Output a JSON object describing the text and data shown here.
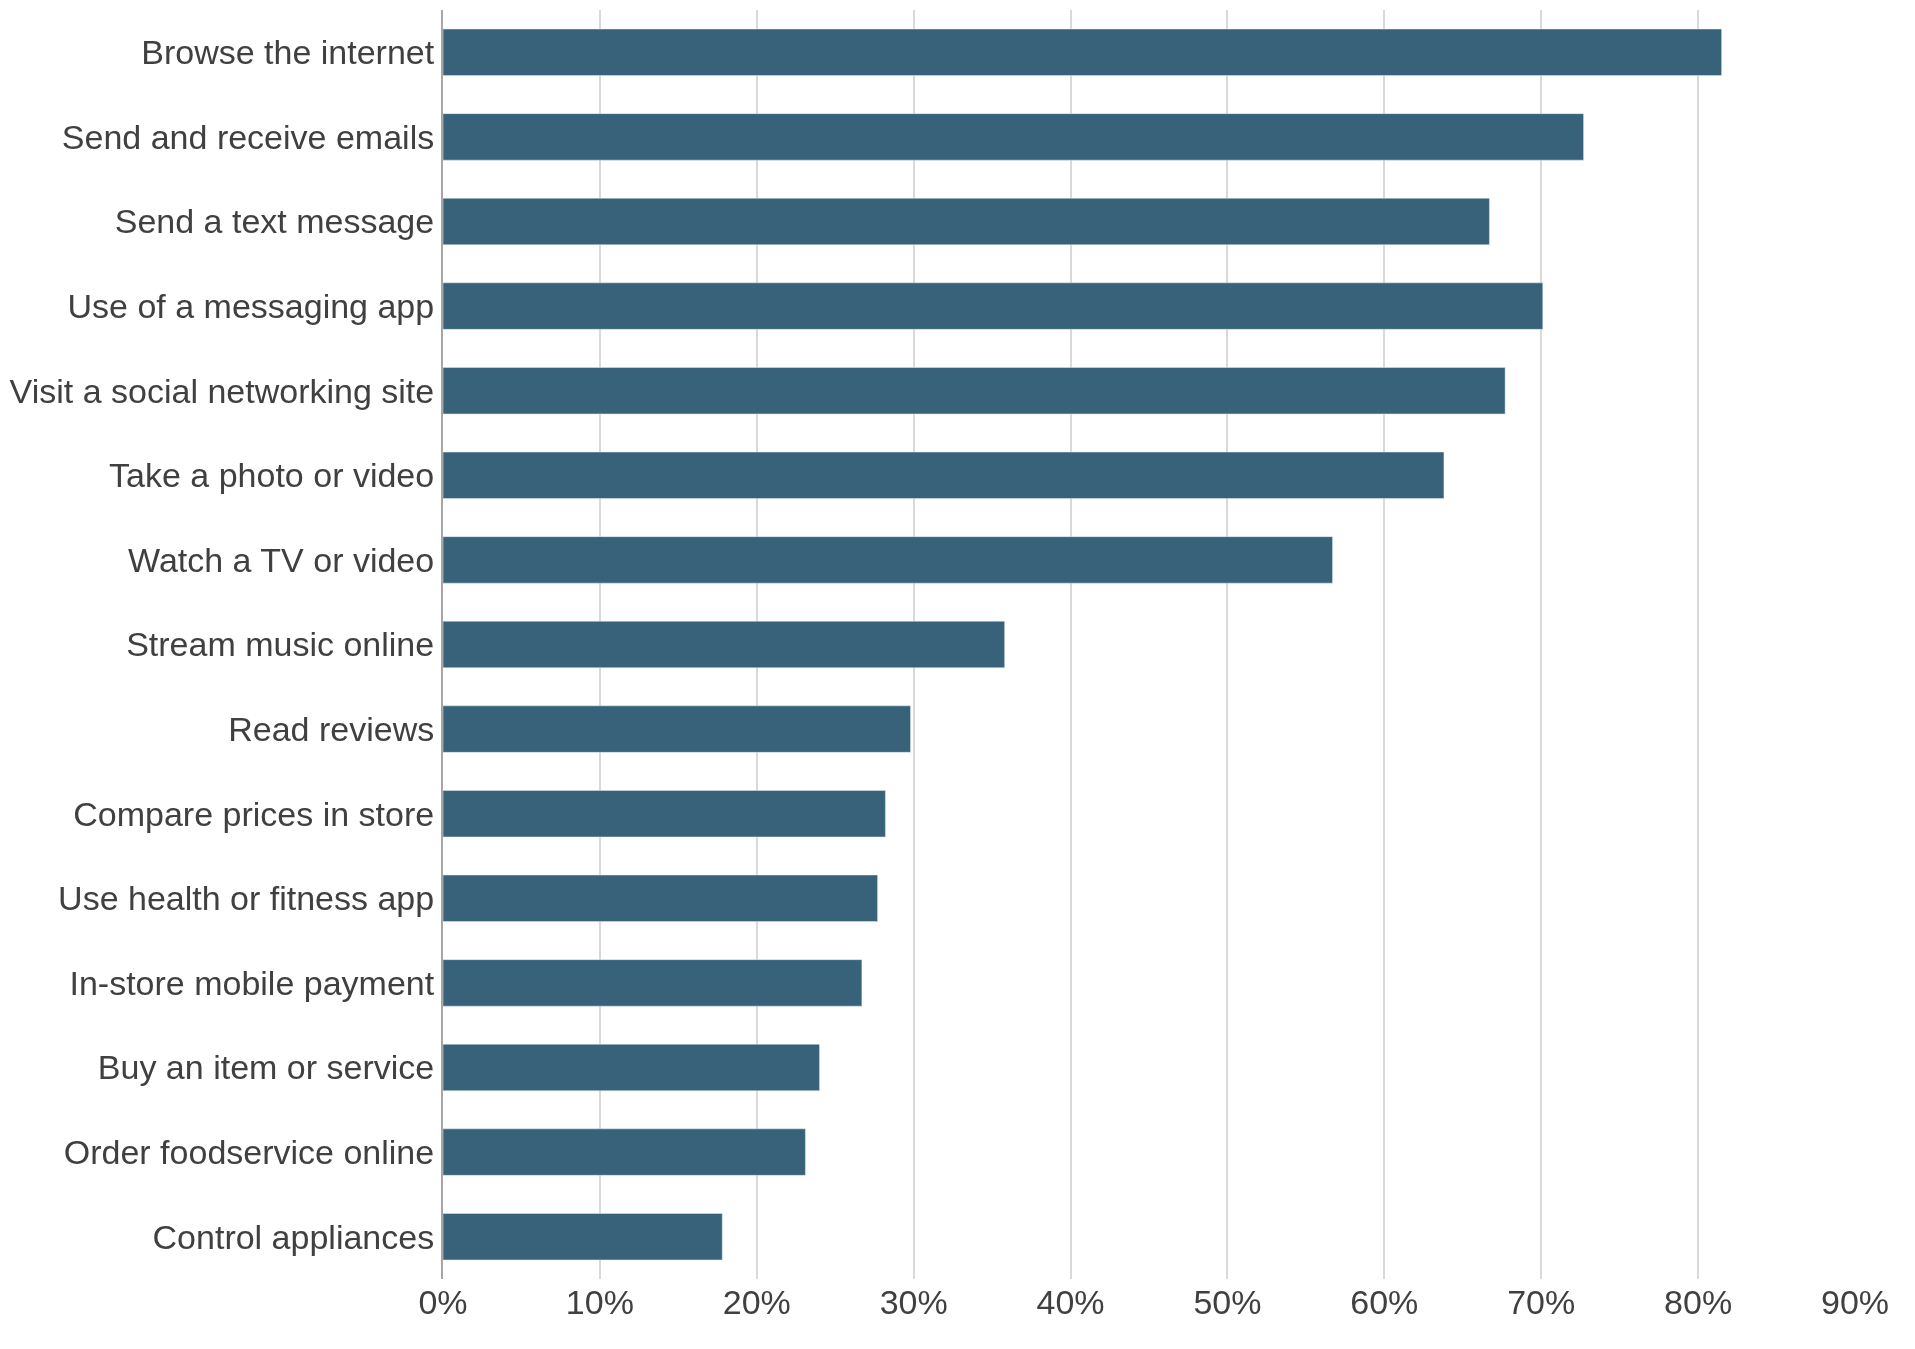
{
  "chart_data": {
    "type": "bar",
    "orientation": "horizontal",
    "color": "#376279",
    "categories": [
      "Browse the internet",
      "Send and receive emails",
      "Send a text message",
      "Use of a messaging app",
      "Visit a social networking site",
      "Take a photo or video",
      "Watch a TV or video",
      "Stream music online",
      "Read reviews",
      "Compare prices in store",
      "Use health or fitness app",
      "In-store mobile payment",
      "Buy an item or service",
      "Order foodservice online",
      "Control appliances"
    ],
    "values": [
      81.5,
      72.7,
      66.7,
      70.1,
      67.7,
      63.8,
      56.7,
      35.8,
      29.8,
      28.2,
      27.7,
      26.7,
      24.0,
      23.1,
      17.8
    ],
    "xlim": [
      0,
      90
    ],
    "xticks": [
      {
        "value": 0,
        "label": "0%"
      },
      {
        "value": 10,
        "label": "10%"
      },
      {
        "value": 20,
        "label": "20%"
      },
      {
        "value": 30,
        "label": "30%"
      },
      {
        "value": 40,
        "label": "40%"
      },
      {
        "value": 50,
        "label": "50%"
      },
      {
        "value": 60,
        "label": "60%"
      },
      {
        "value": 70,
        "label": "70%"
      },
      {
        "value": 80,
        "label": "80%"
      },
      {
        "value": 90,
        "label": "90%"
      }
    ],
    "grid": "x"
  }
}
